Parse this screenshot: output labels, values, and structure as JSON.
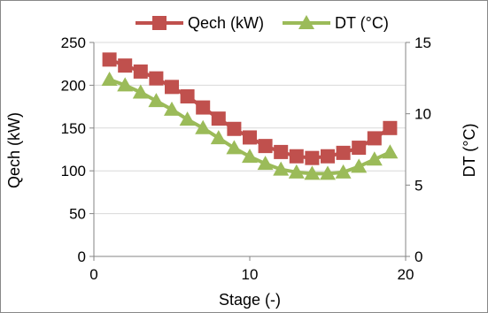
{
  "chart_data": {
    "type": "line",
    "xlabel": "Stage (-)",
    "ylabel": "Qech (kW)",
    "y2label": "DT (°C)",
    "xlim": [
      0,
      20
    ],
    "ylim": [
      0,
      250
    ],
    "y2lim": [
      0,
      15
    ],
    "xticks": [
      0,
      10,
      20
    ],
    "yticks": [
      0,
      50,
      100,
      150,
      200,
      250
    ],
    "y2ticks": [
      0,
      5,
      10,
      15
    ],
    "grid": "horizontal",
    "legend": "top",
    "x": [
      1,
      2,
      3,
      4,
      5,
      6,
      7,
      8,
      9,
      10,
      11,
      12,
      13,
      14,
      15,
      16,
      17,
      18,
      19
    ],
    "series": [
      {
        "name": "Qech (kW)",
        "axis": "left",
        "marker": "square",
        "color": "#C0504D",
        "values": [
          230,
          223,
          216,
          208,
          198,
          187,
          174,
          161,
          149,
          139,
          129,
          122,
          117,
          115,
          117,
          121,
          127,
          138,
          150
        ]
      },
      {
        "name": "DT (°C)",
        "axis": "right",
        "marker": "triangle",
        "color": "#9BBB59",
        "values": [
          12.4,
          12.0,
          11.5,
          10.9,
          10.3,
          9.6,
          9.0,
          8.3,
          7.6,
          7.0,
          6.5,
          6.1,
          5.9,
          5.8,
          5.8,
          5.9,
          6.3,
          6.8,
          7.3
        ]
      }
    ]
  }
}
